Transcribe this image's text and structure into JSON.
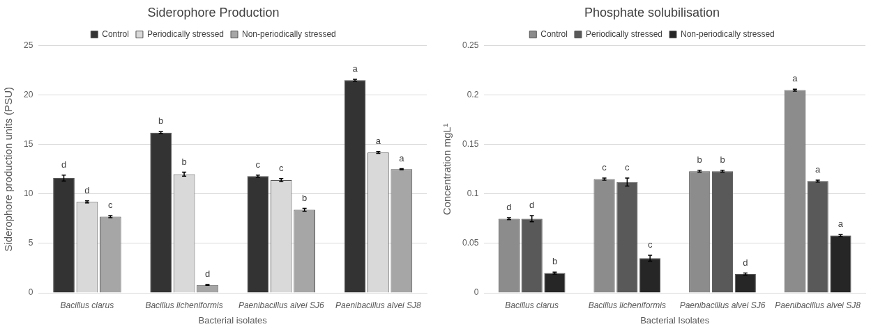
{
  "chart_data": [
    {
      "type": "bar",
      "title": "Siderophore Production",
      "xlabel": "Bacterial isolates",
      "ylabel": "Siderophore production units (PSU)",
      "categories": [
        "Bacillus clarus",
        "Bacillus licheniformis",
        "Paenibacillus alvei SJ6",
        "Paenibacillus alvei SJ8"
      ],
      "series": [
        {
          "name": "Control",
          "color": "#333333",
          "values": [
            11.6,
            16.2,
            11.8,
            21.5
          ],
          "errors": [
            0.3,
            0.1,
            0.1,
            0.1
          ],
          "value_labels": [
            "d",
            "b",
            "c",
            "a"
          ]
        },
        {
          "name": "Periodically stressed",
          "color": "#d9d9d9",
          "values": [
            9.2,
            12.0,
            11.4,
            14.2
          ],
          "errors": [
            0.1,
            0.2,
            0.15,
            0.1
          ],
          "value_labels": [
            "d",
            "b",
            "c",
            "a"
          ]
        },
        {
          "name": "Non-periodically stressed",
          "color": "#a6a6a6",
          "values": [
            7.7,
            0.8,
            8.4,
            12.5
          ],
          "errors": [
            0.1,
            0.05,
            0.15,
            0.05
          ],
          "value_labels": [
            "c",
            "d",
            "b",
            "a"
          ]
        }
      ],
      "ylim": [
        0,
        25
      ],
      "yticks": [
        0,
        5,
        10,
        15,
        20,
        25
      ],
      "grid": "y",
      "legend": "top"
    },
    {
      "type": "bar",
      "title": "Phosphate solubilisation",
      "xlabel": "Bacterial Isolates",
      "ylabel": "Concentration mgL¹",
      "categories": [
        "Bacillus clarus",
        "Bacillus licheniformis",
        "Paenibacillus alvei SJ6",
        "Paenibacillus alvei SJ8"
      ],
      "series": [
        {
          "name": "Control",
          "color": "#8c8c8c",
          "values": [
            0.075,
            0.115,
            0.123,
            0.205
          ],
          "errors": [
            0.001,
            0.001,
            0.001,
            0.001
          ],
          "value_labels": [
            "d",
            "c",
            "b",
            "a"
          ]
        },
        {
          "name": "Periodically stressed",
          "color": "#595959",
          "values": [
            0.075,
            0.112,
            0.123,
            0.113
          ],
          "errors": [
            0.003,
            0.004,
            0.001,
            0.001
          ],
          "value_labels": [
            "d",
            "c",
            "b",
            "a"
          ]
        },
        {
          "name": "Non-periodically stressed",
          "color": "#262626",
          "values": [
            0.02,
            0.035,
            0.019,
            0.058
          ],
          "errors": [
            0.001,
            0.003,
            0.001,
            0.001
          ],
          "value_labels": [
            "b",
            "c",
            "d",
            "a"
          ]
        }
      ],
      "ylim": [
        0,
        0.25
      ],
      "yticks": [
        0,
        0.05,
        0.1,
        0.15,
        0.2,
        0.25
      ],
      "grid": "y",
      "legend": "top"
    }
  ]
}
